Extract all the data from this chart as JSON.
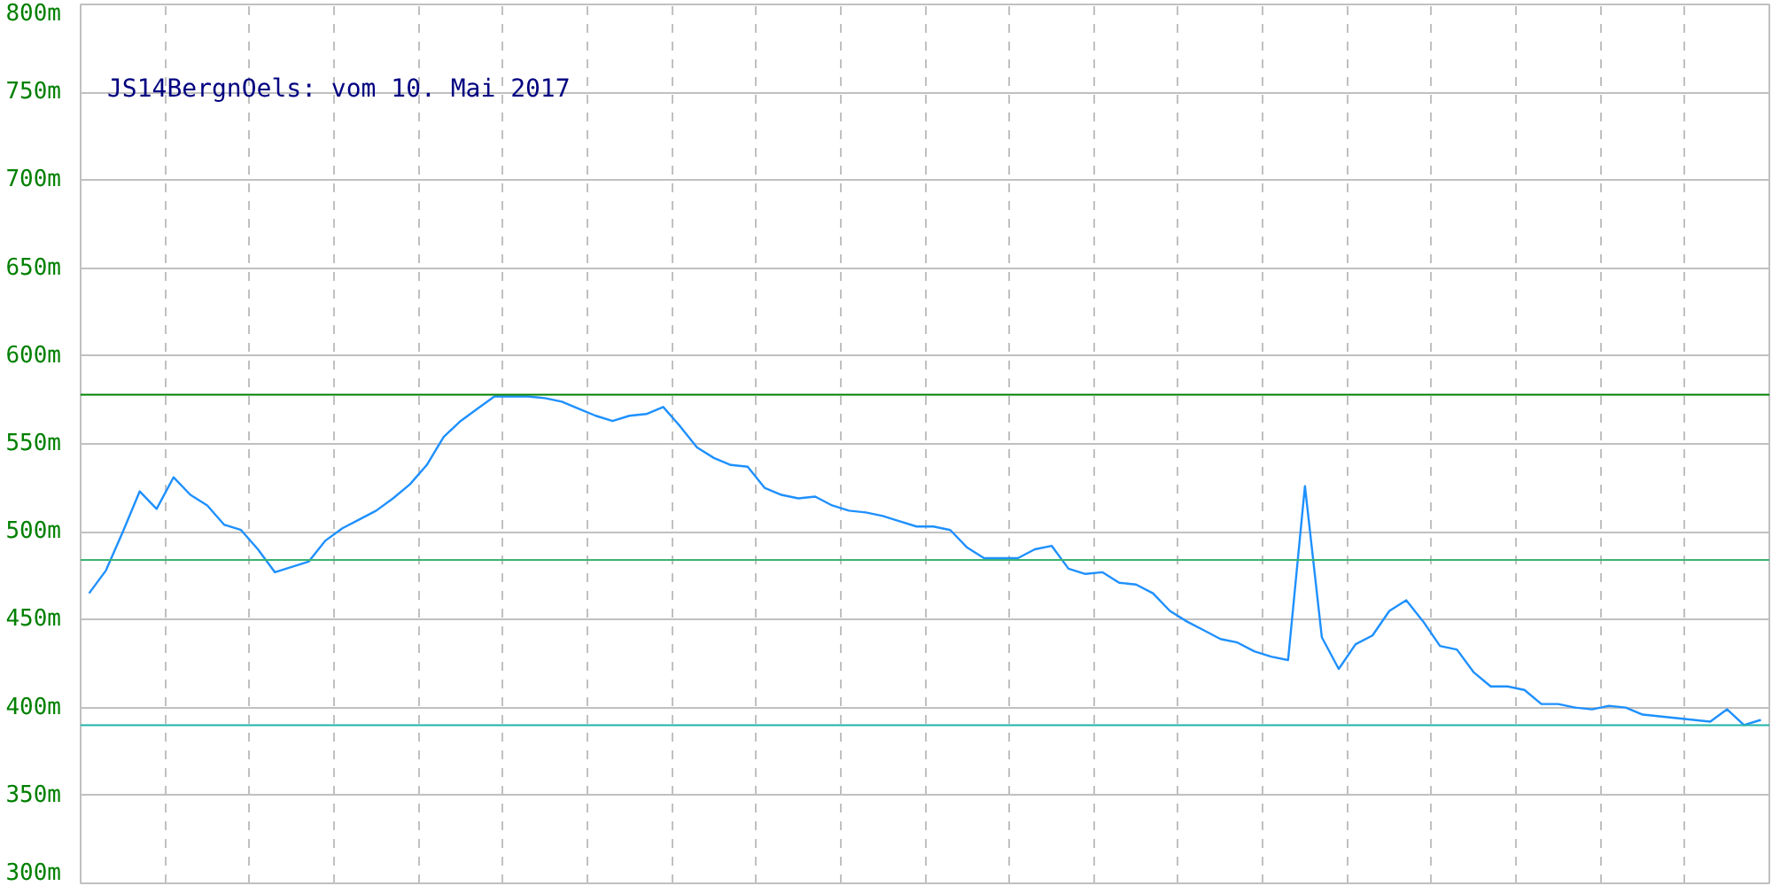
{
  "chart_data": {
    "type": "line",
    "title": "JS14BergnOels: vom 10. Mai 2017",
    "categories": [
      null,
      null,
      null,
      null,
      null,
      null,
      null,
      null,
      null,
      null,
      null,
      null,
      null,
      null,
      null,
      null,
      null,
      null,
      null,
      null,
      null,
      null,
      null,
      null,
      null,
      null,
      null,
      null,
      null,
      null,
      null,
      null,
      null,
      null,
      null,
      null,
      null,
      null,
      null,
      null,
      null,
      null,
      null,
      null,
      null,
      null,
      null,
      null,
      null,
      null,
      null,
      null,
      null,
      null,
      null,
      null,
      null,
      null,
      null,
      null,
      null,
      null,
      null,
      null,
      null,
      null,
      null,
      null,
      null,
      null,
      null,
      null,
      null,
      null,
      null,
      null,
      null,
      null,
      null,
      null,
      null,
      null,
      null,
      null,
      null,
      null,
      null,
      null,
      null,
      null,
      null,
      null,
      null,
      null,
      null,
      null,
      null,
      null,
      null,
      null
    ],
    "series": [
      {
        "color": "#1e90ff",
        "values": [
          465,
          478,
          500,
          523,
          513,
          531,
          521,
          515,
          504,
          501,
          490,
          477,
          480,
          483,
          495,
          502,
          507,
          512,
          519,
          527,
          538,
          554,
          563,
          570,
          577,
          577,
          577,
          576,
          574,
          570,
          566,
          563,
          566,
          567,
          571,
          560,
          548,
          542,
          538,
          537,
          525,
          521,
          519,
          520,
          515,
          512,
          511,
          509,
          506,
          503,
          503,
          501,
          491,
          485,
          485,
          485,
          490,
          492,
          479,
          476,
          477,
          471,
          470,
          465,
          455,
          449,
          444,
          439,
          437,
          432,
          429,
          427,
          526,
          440,
          422,
          436,
          441,
          455,
          461,
          449,
          435,
          433,
          420,
          412,
          412,
          410,
          402,
          402,
          400,
          399,
          401,
          400,
          396,
          395,
          394,
          393,
          392,
          399,
          390,
          393
        ]
      }
    ],
    "ylim": [
      300,
      800
    ],
    "yticks": [
      {
        "value": 300,
        "label": "300m"
      },
      {
        "value": 350,
        "label": "350m"
      },
      {
        "value": 400,
        "label": "400m"
      },
      {
        "value": 450,
        "label": "450m"
      },
      {
        "value": 500,
        "label": "500m"
      },
      {
        "value": 550,
        "label": "550m"
      },
      {
        "value": 600,
        "label": "600m"
      },
      {
        "value": 650,
        "label": "650m"
      },
      {
        "value": 700,
        "label": "700m"
      },
      {
        "value": 750,
        "label": "750m"
      },
      {
        "value": 800,
        "label": "800m"
      }
    ],
    "tick_labels": "y",
    "grid": true,
    "marker": "none",
    "line_style": "solid",
    "ref_lines": [
      {
        "axis": "y",
        "value": 578,
        "color": "#008000"
      },
      {
        "axis": "y",
        "value": 484,
        "color": "#3cb371"
      },
      {
        "axis": "y",
        "value": 390,
        "color": "#20b2aa"
      }
    ]
  }
}
